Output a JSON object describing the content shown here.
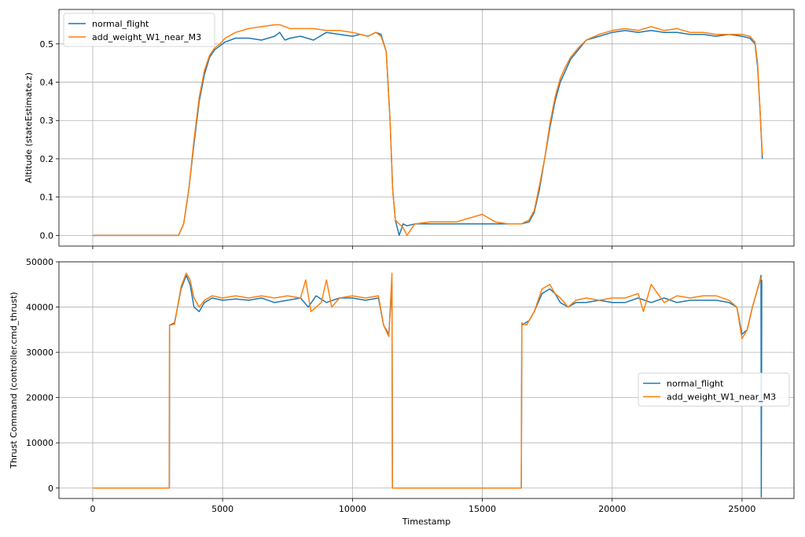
{
  "chart_data": [
    {
      "type": "line",
      "title": "",
      "xlabel": "",
      "ylabel": "Altitude (stateEstimate.z)",
      "xlim": [
        -1300,
        27000
      ],
      "ylim": [
        -0.028,
        0.59
      ],
      "xticks": [
        0,
        5000,
        10000,
        15000,
        20000,
        25000
      ],
      "xtick_labels_visible": false,
      "yticks": [
        0.0,
        0.1,
        0.2,
        0.3,
        0.4,
        0.5
      ],
      "ytick_labels": [
        "0.0",
        "0.1",
        "0.2",
        "0.3",
        "0.4",
        "0.5"
      ],
      "grid": true,
      "legend": {
        "position": "upper-left",
        "entries": [
          "normal_flight",
          "add_weight_W1_near_M3"
        ]
      },
      "series": [
        {
          "name": "normal_flight",
          "color": "#1f77b4",
          "x": [
            0,
            2000,
            2600,
            3300,
            3500,
            3700,
            3900,
            4100,
            4300,
            4500,
            4700,
            4900,
            5100,
            5500,
            6000,
            6500,
            7000,
            7200,
            7400,
            7600,
            8000,
            8500,
            9000,
            9500,
            10000,
            10300,
            10600,
            10900,
            11100,
            11300,
            11450,
            11550,
            11650,
            11800,
            11950,
            12100,
            12400,
            13000,
            14000,
            15000,
            16000,
            16500,
            16800,
            17000,
            17200,
            17400,
            17600,
            17800,
            18000,
            18200,
            18400,
            18700,
            19000,
            19500,
            20000,
            20500,
            21000,
            21500,
            22000,
            22500,
            23000,
            23500,
            24000,
            24500,
            25000,
            25300,
            25500,
            25600,
            25700,
            25780
          ],
          "y": [
            0.0,
            0.0,
            0.0,
            0.0,
            0.03,
            0.12,
            0.24,
            0.35,
            0.42,
            0.465,
            0.485,
            0.495,
            0.505,
            0.515,
            0.515,
            0.51,
            0.52,
            0.53,
            0.51,
            0.515,
            0.52,
            0.51,
            0.53,
            0.525,
            0.52,
            0.525,
            0.52,
            0.53,
            0.525,
            0.48,
            0.3,
            0.12,
            0.04,
            0.0,
            0.03,
            0.025,
            0.03,
            0.03,
            0.03,
            0.03,
            0.03,
            0.03,
            0.035,
            0.06,
            0.12,
            0.2,
            0.28,
            0.35,
            0.4,
            0.43,
            0.46,
            0.485,
            0.51,
            0.52,
            0.53,
            0.535,
            0.53,
            0.535,
            0.53,
            0.53,
            0.525,
            0.525,
            0.52,
            0.525,
            0.52,
            0.515,
            0.5,
            0.44,
            0.32,
            0.2
          ]
        },
        {
          "name": "add_weight_W1_near_M3",
          "color": "#ff7f0e",
          "x": [
            0,
            2000,
            2600,
            3300,
            3500,
            3700,
            3900,
            4100,
            4300,
            4500,
            4700,
            4900,
            5100,
            5500,
            6000,
            6500,
            7000,
            7200,
            7400,
            7600,
            8000,
            8500,
            9000,
            9500,
            10000,
            10300,
            10600,
            10900,
            11100,
            11300,
            11450,
            11550,
            11650,
            11800,
            11950,
            12100,
            12400,
            13000,
            14000,
            14500,
            15000,
            15500,
            16000,
            16500,
            16800,
            17000,
            17200,
            17400,
            17600,
            17800,
            18000,
            18200,
            18400,
            18700,
            19000,
            19500,
            20000,
            20500,
            21000,
            21500,
            22000,
            22500,
            23000,
            23500,
            24000,
            24500,
            25000,
            25300,
            25500,
            25600,
            25700,
            25780
          ],
          "y": [
            0.0,
            0.0,
            0.0,
            0.0,
            0.03,
            0.12,
            0.25,
            0.36,
            0.43,
            0.47,
            0.49,
            0.5,
            0.515,
            0.53,
            0.54,
            0.545,
            0.55,
            0.55,
            0.545,
            0.54,
            0.54,
            0.54,
            0.535,
            0.535,
            0.53,
            0.525,
            0.52,
            0.53,
            0.52,
            0.48,
            0.3,
            0.12,
            0.04,
            0.03,
            0.02,
            0.0,
            0.03,
            0.035,
            0.035,
            0.045,
            0.055,
            0.035,
            0.03,
            0.03,
            0.04,
            0.065,
            0.13,
            0.2,
            0.29,
            0.36,
            0.41,
            0.44,
            0.465,
            0.49,
            0.51,
            0.525,
            0.535,
            0.54,
            0.535,
            0.545,
            0.535,
            0.54,
            0.53,
            0.53,
            0.525,
            0.525,
            0.525,
            0.52,
            0.505,
            0.45,
            0.32,
            0.21
          ]
        }
      ]
    },
    {
      "type": "line",
      "title": "",
      "xlabel": "Timestamp",
      "ylabel": "Thrust Command (controller.cmd_thrust)",
      "xlim": [
        -1300,
        27000
      ],
      "ylim": [
        -2300,
        50000
      ],
      "xticks": [
        0,
        5000,
        10000,
        15000,
        20000,
        25000
      ],
      "xtick_labels": [
        "0",
        "5000",
        "10000",
        "15000",
        "20000",
        "25000"
      ],
      "yticks": [
        0,
        10000,
        20000,
        30000,
        40000,
        50000
      ],
      "ytick_labels": [
        "0",
        "10000",
        "20000",
        "30000",
        "40000",
        "50000"
      ],
      "grid": true,
      "legend": {
        "position": "center-right",
        "entries": [
          "normal_flight",
          "add_weight_W1_near_M3"
        ]
      },
      "series": [
        {
          "name": "normal_flight",
          "color": "#1f77b4",
          "x": [
            0,
            2950,
            2960,
            3150,
            3400,
            3600,
            3750,
            3900,
            4100,
            4300,
            4600,
            5000,
            5500,
            6000,
            6500,
            7000,
            7500,
            8000,
            8300,
            8600,
            9000,
            9500,
            10000,
            10500,
            11000,
            11200,
            11400,
            11520,
            11540,
            12000,
            14000,
            16000,
            16500,
            16520,
            16800,
            17000,
            17300,
            17600,
            17800,
            18000,
            18300,
            18600,
            19000,
            19500,
            20000,
            20500,
            21000,
            21500,
            22000,
            22500,
            23000,
            23500,
            24000,
            24500,
            24800,
            25000,
            25200,
            25400,
            25600,
            25700,
            25730,
            25740,
            25760
          ],
          "y": [
            0,
            0,
            36000,
            36500,
            44000,
            47000,
            45000,
            40000,
            39000,
            41000,
            42000,
            41500,
            41800,
            41500,
            42000,
            41000,
            41500,
            42000,
            40000,
            42500,
            41000,
            42000,
            42000,
            41500,
            42000,
            36000,
            34000,
            45000,
            0,
            0,
            0,
            0,
            0,
            36000,
            37000,
            39000,
            43000,
            44000,
            43000,
            41000,
            40000,
            41000,
            41000,
            41500,
            41000,
            41000,
            42000,
            41000,
            42000,
            41000,
            41500,
            41500,
            41500,
            41000,
            40000,
            34000,
            35000,
            40000,
            44000,
            46000,
            47000,
            -2000,
            46000
          ]
        },
        {
          "name": "add_weight_W1_near_M3",
          "color": "#ff7f0e",
          "x": [
            0,
            2950,
            2960,
            3150,
            3400,
            3600,
            3750,
            3900,
            4100,
            4300,
            4600,
            5000,
            5500,
            6000,
            6500,
            7000,
            7500,
            8000,
            8200,
            8400,
            8800,
            9000,
            9200,
            9500,
            10000,
            10500,
            11000,
            11200,
            11400,
            11520,
            11540,
            12000,
            14000,
            16000,
            16500,
            16520,
            16700,
            17000,
            17300,
            17600,
            17800,
            18000,
            18300,
            18600,
            19000,
            19500,
            20000,
            20500,
            21000,
            21200,
            21500,
            22000,
            22500,
            23000,
            23500,
            24000,
            24500,
            24800,
            25000,
            25200,
            25400,
            25600,
            25760
          ],
          "y": [
            0,
            0,
            36000,
            36200,
            44500,
            47500,
            46000,
            42000,
            40000,
            41500,
            42500,
            42000,
            42500,
            42000,
            42500,
            42000,
            42500,
            42000,
            46000,
            39000,
            41000,
            46000,
            40000,
            42000,
            42500,
            42000,
            42500,
            36000,
            33500,
            47500,
            0,
            0,
            0,
            0,
            0,
            36500,
            36000,
            39000,
            44000,
            45000,
            43000,
            42000,
            40000,
            41500,
            42000,
            41500,
            42000,
            42000,
            43000,
            39000,
            45000,
            41000,
            42500,
            42000,
            42500,
            42500,
            41500,
            40000,
            33000,
            35000,
            40000,
            44000,
            47000
          ]
        }
      ]
    }
  ]
}
